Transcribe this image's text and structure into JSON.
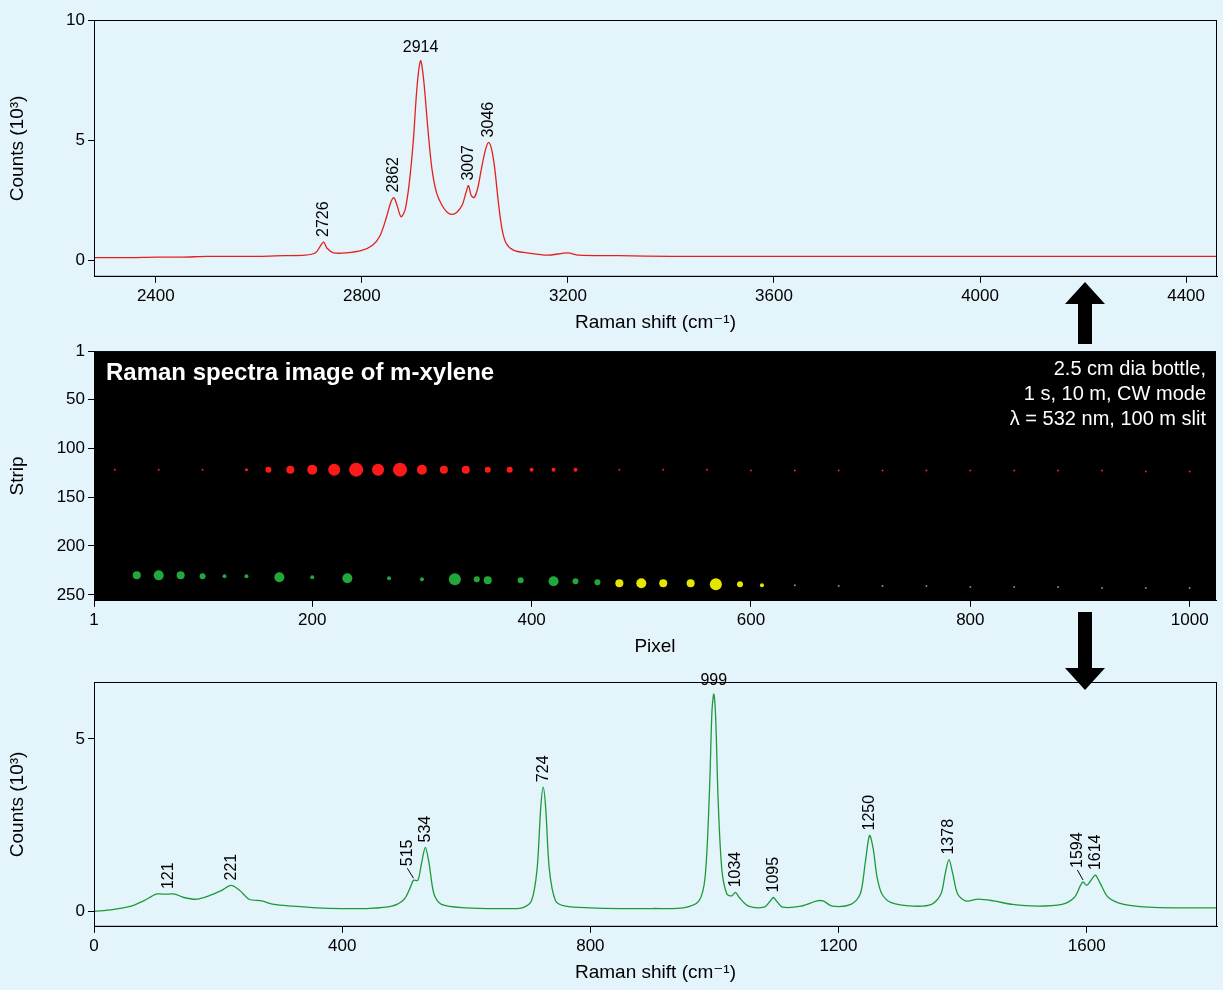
{
  "chart_data": [
    {
      "type": "line",
      "color": "#e3201c",
      "x_label": "Raman shift (cm⁻¹)",
      "y_label": "Counts (10³)",
      "xlim": [
        2280,
        4460
      ],
      "xticks": [
        2400,
        2800,
        3200,
        3600,
        4000,
        4400
      ],
      "ylim": [
        -0.7,
        10
      ],
      "yticks": [
        0,
        5,
        10
      ],
      "grid": false,
      "x": [
        2280,
        2350,
        2400,
        2450,
        2500,
        2550,
        2600,
        2650,
        2690,
        2710,
        2720,
        2726,
        2732,
        2745,
        2770,
        2800,
        2820,
        2835,
        2848,
        2856,
        2862,
        2868,
        2876,
        2884,
        2892,
        2900,
        2907,
        2914,
        2920,
        2928,
        2936,
        2945,
        2955,
        2965,
        2975,
        2985,
        2995,
        3002,
        3007,
        3012,
        3018,
        3025,
        3032,
        3040,
        3046,
        3052,
        3058,
        3065,
        3072,
        3080,
        3095,
        3120,
        3160,
        3200,
        3220,
        3300,
        3400,
        3500,
        3600,
        3700,
        3800,
        3900,
        4000,
        4100,
        4200,
        4300,
        4400,
        4460
      ],
      "values": [
        0.1,
        0.1,
        0.12,
        0.12,
        0.15,
        0.15,
        0.15,
        0.18,
        0.2,
        0.3,
        0.6,
        0.75,
        0.5,
        0.3,
        0.3,
        0.4,
        0.6,
        1.0,
        1.8,
        2.4,
        2.6,
        2.3,
        1.8,
        2.1,
        3.2,
        5.0,
        7.2,
        8.3,
        7.5,
        5.5,
        3.8,
        2.8,
        2.3,
        2.0,
        1.9,
        2.0,
        2.3,
        2.8,
        3.1,
        2.7,
        2.6,
        3.0,
        3.8,
        4.6,
        4.9,
        4.6,
        3.8,
        2.4,
        1.3,
        0.7,
        0.4,
        0.3,
        0.2,
        0.3,
        0.2,
        0.18,
        0.15,
        0.15,
        0.15,
        0.15,
        0.15,
        0.15,
        0.15,
        0.15,
        0.15,
        0.15,
        0.15,
        0.15
      ],
      "annotations": [
        {
          "text": "2726",
          "x": 2726,
          "y": 0.75
        },
        {
          "text": "2862",
          "x": 2862,
          "y": 2.6
        },
        {
          "text": "2914",
          "x": 2914,
          "y": 8.3
        },
        {
          "text": "3007",
          "x": 3007,
          "y": 3.1
        },
        {
          "text": "3046",
          "x": 3046,
          "y": 4.9
        }
      ]
    },
    {
      "type": "bubble",
      "title": "Raman spectra image of m-xylene",
      "annotations": [
        "2.5 cm dia bottle,",
        "1 s, 10 m, CW mode",
        "λ = 532 nm, 100 m slit"
      ],
      "x_label": "Pixel",
      "y_label": "Strip",
      "xlim": [
        1,
        1024
      ],
      "xticks": [
        1,
        200,
        400,
        600,
        800,
        1000
      ],
      "ylim": [
        256,
        1
      ],
      "yticks": [
        1,
        50,
        100,
        150,
        200,
        250
      ],
      "grid": false,
      "series": [
        {
          "color": "#ff1a1a",
          "values": [
            {
              "x": 20,
              "y": 122,
              "r": 1
            },
            {
              "x": 60,
              "y": 122,
              "r": 1
            },
            {
              "x": 100,
              "y": 122,
              "r": 1
            },
            {
              "x": 140,
              "y": 122,
              "r": 1.5
            },
            {
              "x": 160,
              "y": 122,
              "r": 3
            },
            {
              "x": 180,
              "y": 122,
              "r": 4
            },
            {
              "x": 200,
              "y": 122,
              "r": 5
            },
            {
              "x": 220,
              "y": 122,
              "r": 6
            },
            {
              "x": 240,
              "y": 122,
              "r": 7
            },
            {
              "x": 260,
              "y": 122,
              "r": 6
            },
            {
              "x": 280,
              "y": 122,
              "r": 7
            },
            {
              "x": 300,
              "y": 122,
              "r": 5
            },
            {
              "x": 320,
              "y": 122,
              "r": 4
            },
            {
              "x": 340,
              "y": 122,
              "r": 4
            },
            {
              "x": 360,
              "y": 122,
              "r": 3
            },
            {
              "x": 380,
              "y": 122,
              "r": 3
            },
            {
              "x": 400,
              "y": 122,
              "r": 2
            },
            {
              "x": 420,
              "y": 122,
              "r": 2
            },
            {
              "x": 440,
              "y": 122,
              "r": 2
            },
            {
              "x": 480,
              "y": 122,
              "r": 1
            },
            {
              "x": 520,
              "y": 122,
              "r": 1
            },
            {
              "x": 560,
              "y": 122,
              "r": 1
            },
            {
              "x": 600,
              "y": 123,
              "r": 1
            },
            {
              "x": 640,
              "y": 123,
              "r": 1
            },
            {
              "x": 680,
              "y": 123,
              "r": 1
            },
            {
              "x": 720,
              "y": 123,
              "r": 1
            },
            {
              "x": 760,
              "y": 123,
              "r": 1
            },
            {
              "x": 800,
              "y": 123,
              "r": 1
            },
            {
              "x": 840,
              "y": 123,
              "r": 1
            },
            {
              "x": 880,
              "y": 123,
              "r": 1
            },
            {
              "x": 920,
              "y": 123,
              "r": 1
            },
            {
              "x": 960,
              "y": 124,
              "r": 1
            },
            {
              "x": 1000,
              "y": 124,
              "r": 1
            }
          ]
        },
        {
          "color": "#22a83a",
          "values": [
            {
              "x": 40,
              "y": 230,
              "r": 4
            },
            {
              "x": 60,
              "y": 230,
              "r": 5
            },
            {
              "x": 80,
              "y": 230,
              "r": 4
            },
            {
              "x": 100,
              "y": 231,
              "r": 3
            },
            {
              "x": 120,
              "y": 231,
              "r": 2
            },
            {
              "x": 140,
              "y": 231,
              "r": 2
            },
            {
              "x": 170,
              "y": 232,
              "r": 5
            },
            {
              "x": 200,
              "y": 232,
              "r": 2
            },
            {
              "x": 232,
              "y": 233,
              "r": 5
            },
            {
              "x": 270,
              "y": 233,
              "r": 2
            },
            {
              "x": 300,
              "y": 234,
              "r": 2
            },
            {
              "x": 330,
              "y": 234,
              "r": 6
            },
            {
              "x": 350,
              "y": 234,
              "r": 3
            },
            {
              "x": 360,
              "y": 235,
              "r": 4
            },
            {
              "x": 390,
              "y": 235,
              "r": 3
            },
            {
              "x": 420,
              "y": 236,
              "r": 5
            },
            {
              "x": 440,
              "y": 236,
              "r": 3
            },
            {
              "x": 460,
              "y": 237,
              "r": 3
            }
          ]
        },
        {
          "color": "#e6e600",
          "values": [
            {
              "x": 480,
              "y": 238,
              "r": 4
            },
            {
              "x": 500,
              "y": 238,
              "r": 5
            },
            {
              "x": 520,
              "y": 238,
              "r": 4
            },
            {
              "x": 545,
              "y": 238,
              "r": 4
            },
            {
              "x": 568,
              "y": 239,
              "r": 6
            },
            {
              "x": 590,
              "y": 239,
              "r": 3
            },
            {
              "x": 610,
              "y": 240,
              "r": 2
            }
          ]
        },
        {
          "color": "#8a8a8a",
          "values": [
            {
              "x": 640,
              "y": 240,
              "r": 1
            },
            {
              "x": 680,
              "y": 241,
              "r": 1
            },
            {
              "x": 720,
              "y": 241,
              "r": 1
            },
            {
              "x": 760,
              "y": 241,
              "r": 1
            },
            {
              "x": 800,
              "y": 242,
              "r": 1
            },
            {
              "x": 840,
              "y": 242,
              "r": 1
            },
            {
              "x": 880,
              "y": 242,
              "r": 1
            },
            {
              "x": 920,
              "y": 243,
              "r": 1
            },
            {
              "x": 960,
              "y": 243,
              "r": 1
            },
            {
              "x": 1000,
              "y": 243,
              "r": 1
            }
          ]
        }
      ]
    },
    {
      "type": "line",
      "color": "#1c9a3a",
      "x_label": "Raman shift (cm⁻¹)",
      "y_label": "Counts (10³)",
      "xlim": [
        0,
        1810
      ],
      "xticks": [
        0,
        400,
        800,
        1200,
        1600
      ],
      "ylim": [
        -0.45,
        6.65
      ],
      "yticks": [
        0,
        5
      ],
      "grid": false,
      "x": [
        0,
        30,
        60,
        80,
        100,
        110,
        121,
        130,
        145,
        165,
        185,
        205,
        221,
        235,
        250,
        270,
        290,
        320,
        360,
        400,
        440,
        480,
        500,
        510,
        515,
        522,
        528,
        534,
        540,
        548,
        560,
        600,
        650,
        690,
        705,
        714,
        720,
        724,
        728,
        734,
        744,
        760,
        800,
        850,
        900,
        950,
        975,
        985,
        992,
        996,
        999,
        1002,
        1006,
        1012,
        1020,
        1028,
        1034,
        1040,
        1055,
        1080,
        1090,
        1095,
        1100,
        1110,
        1140,
        1165,
        1175,
        1190,
        1220,
        1235,
        1243,
        1250,
        1256,
        1262,
        1270,
        1285,
        1320,
        1350,
        1365,
        1372,
        1378,
        1384,
        1392,
        1405,
        1425,
        1450,
        1480,
        1520,
        1560,
        1580,
        1590,
        1594,
        1600,
        1607,
        1614,
        1622,
        1635,
        1660,
        1700,
        1750,
        1800,
        1810
      ],
      "values": [
        0.0,
        0.05,
        0.15,
        0.3,
        0.5,
        0.5,
        0.5,
        0.5,
        0.4,
        0.35,
        0.45,
        0.6,
        0.75,
        0.6,
        0.35,
        0.3,
        0.2,
        0.15,
        0.1,
        0.08,
        0.08,
        0.15,
        0.35,
        0.7,
        0.9,
        0.9,
        1.4,
        1.85,
        1.4,
        0.5,
        0.2,
        0.1,
        0.08,
        0.1,
        0.3,
        1.2,
        3.0,
        3.6,
        3.0,
        1.2,
        0.3,
        0.15,
        0.1,
        0.08,
        0.08,
        0.1,
        0.3,
        1.0,
        3.5,
        5.8,
        6.3,
        5.6,
        3.2,
        1.2,
        0.5,
        0.45,
        0.55,
        0.4,
        0.15,
        0.12,
        0.3,
        0.4,
        0.3,
        0.12,
        0.15,
        0.3,
        0.3,
        0.15,
        0.2,
        0.5,
        1.4,
        2.2,
        1.8,
        1.0,
        0.5,
        0.25,
        0.15,
        0.2,
        0.5,
        1.1,
        1.5,
        1.1,
        0.5,
        0.3,
        0.35,
        0.3,
        0.2,
        0.15,
        0.2,
        0.4,
        0.75,
        0.85,
        0.75,
        0.9,
        1.05,
        0.8,
        0.4,
        0.2,
        0.12,
        0.1,
        0.1,
        0.1
      ],
      "annotations": [
        {
          "text": "121",
          "x": 121,
          "y": 0.5
        },
        {
          "text": "221",
          "x": 221,
          "y": 0.75
        },
        {
          "text": "515",
          "x": 515,
          "y": 0.9
        },
        {
          "text": "534",
          "x": 534,
          "y": 1.85
        },
        {
          "text": "724",
          "x": 724,
          "y": 3.6
        },
        {
          "text": "999",
          "x": 999,
          "y": 6.3
        },
        {
          "text": "1034",
          "x": 1034,
          "y": 0.55
        },
        {
          "text": "1095",
          "x": 1095,
          "y": 0.4
        },
        {
          "text": "1250",
          "x": 1250,
          "y": 2.2
        },
        {
          "text": "1378",
          "x": 1378,
          "y": 1.5
        },
        {
          "text": "1594",
          "x": 1594,
          "y": 0.85
        },
        {
          "text": "1614",
          "x": 1614,
          "y": 1.05
        }
      ]
    }
  ]
}
